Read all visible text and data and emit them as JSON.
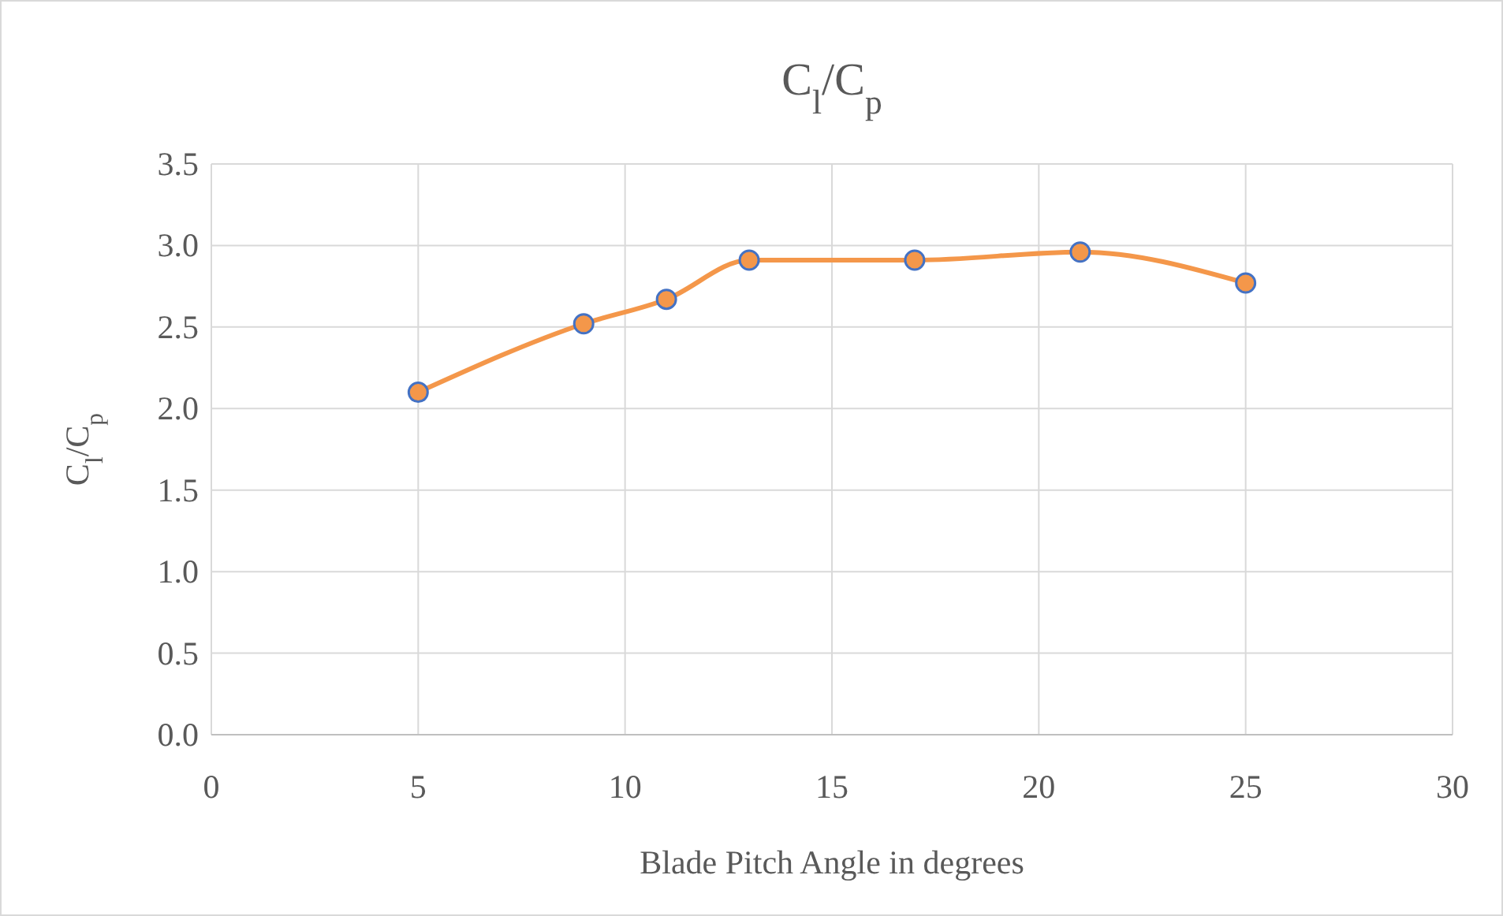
{
  "chart_data": {
    "type": "line",
    "title": "C$_{l}$/C$_{p}$",
    "xlabel": "Blade Pitch Angle in degrees",
    "ylabel": "C$_{l}$/C$_{p}$",
    "x": [
      5,
      9,
      11,
      13,
      17,
      21,
      25
    ],
    "series": [
      {
        "color": "#f4974a",
        "values": [
          2.1,
          2.52,
          2.67,
          2.91,
          2.91,
          2.96,
          2.77
        ]
      }
    ],
    "xlim": [
      0,
      30
    ],
    "xticks": [
      0,
      5,
      10,
      15,
      20,
      25,
      30
    ],
    "ylim": [
      0,
      3.5
    ],
    "yticks": [
      {
        "value": 0,
        "label": "0.0"
      },
      {
        "value": 0.5,
        "label": "0.5"
      },
      {
        "value": 1,
        "label": "1.0"
      },
      {
        "value": 1.5,
        "label": "1.5"
      },
      {
        "value": 2,
        "label": "2.0"
      },
      {
        "value": 2.5,
        "label": "2.5"
      },
      {
        "value": 3,
        "label": "3.0"
      },
      {
        "value": 3.5,
        "label": "3.5"
      }
    ],
    "grid": true,
    "marker": "circle",
    "line_style": "solid"
  }
}
